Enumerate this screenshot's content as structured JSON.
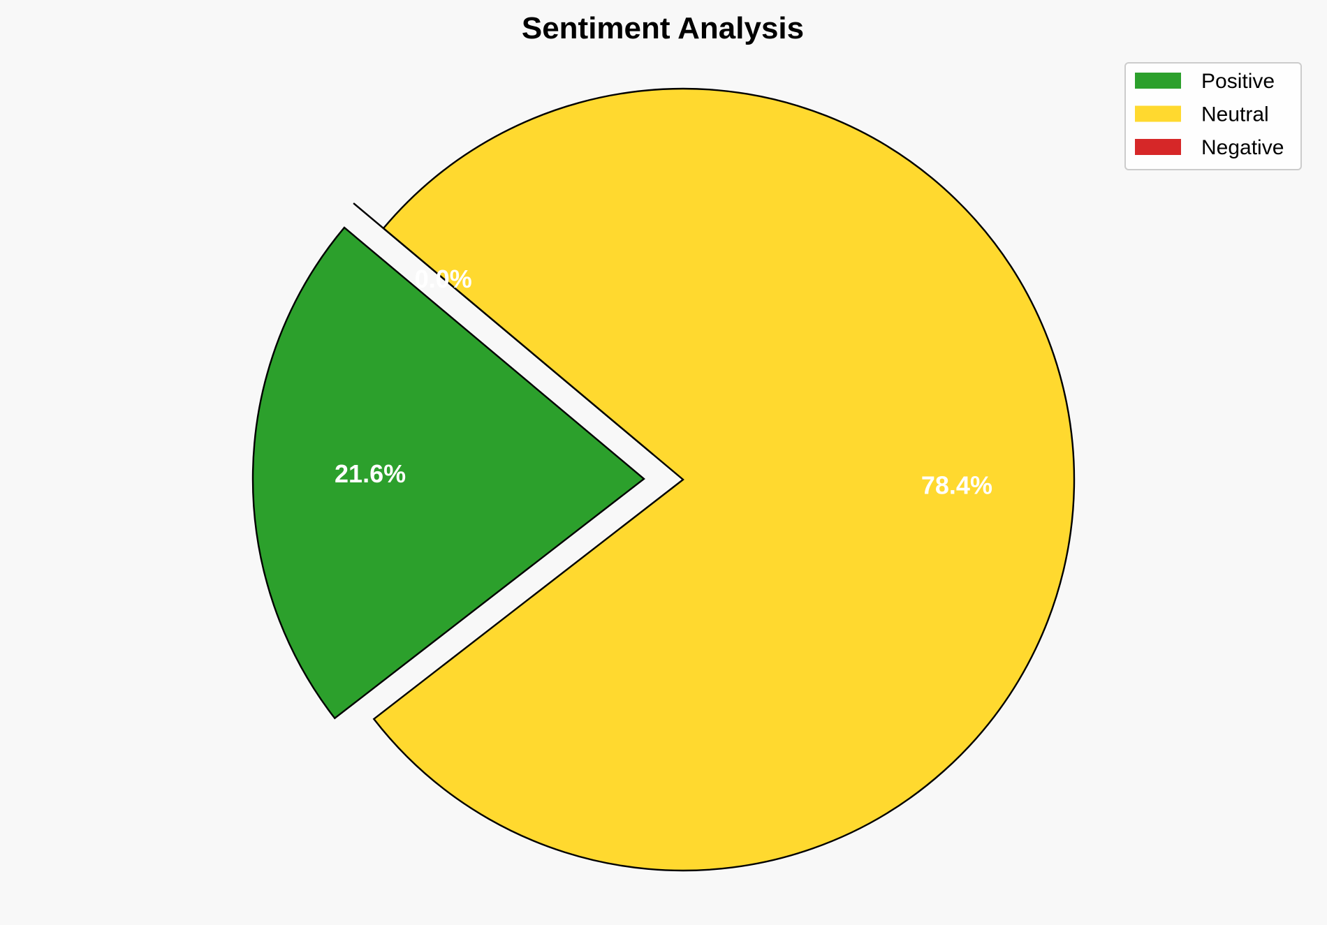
{
  "chart_data": {
    "type": "pie",
    "title": "Sentiment Analysis",
    "categories": [
      "Positive",
      "Neutral",
      "Negative"
    ],
    "values": [
      21.6,
      78.4,
      0.0
    ],
    "labels": [
      "21.6%",
      "78.4%",
      "0.0%"
    ],
    "colors": [
      "#2ca02c",
      "#ffd92f",
      "#d62728"
    ],
    "explode": [
      0.1,
      0,
      0.1
    ],
    "start_angle_deg": 140,
    "legend_placement": "top-right",
    "edge_color": "#000000"
  }
}
